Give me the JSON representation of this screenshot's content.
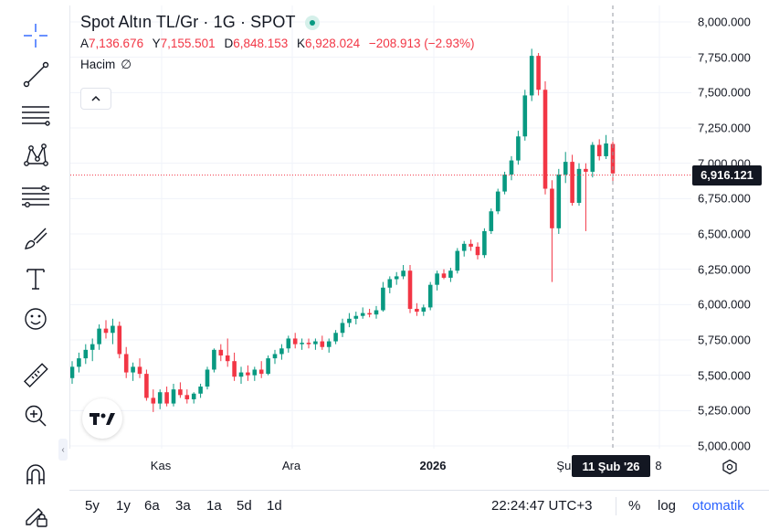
{
  "toolbar": {
    "tools": [
      {
        "name": "crosshair-icon"
      },
      {
        "name": "trend-line-icon"
      },
      {
        "name": "horizontal-lines-icon"
      },
      {
        "name": "pattern-icon"
      },
      {
        "name": "fib-icon"
      },
      {
        "name": "brush-icon"
      },
      {
        "name": "text-tool-icon"
      },
      {
        "name": "emoji-icon"
      },
      {
        "name": "ruler-icon"
      },
      {
        "name": "zoom-in-icon"
      },
      {
        "name": "magnet-icon"
      },
      {
        "name": "lock-drawing-icon"
      }
    ]
  },
  "legend": {
    "symbol": "Spot Altın TL/Gr · 1G · SPOT",
    "ohlc": [
      {
        "label": "A",
        "value": "7,136.676"
      },
      {
        "label": "Y",
        "value": "7,155.501"
      },
      {
        "label": "D",
        "value": "6,848.153"
      },
      {
        "label": "K",
        "value": "6,928.024"
      }
    ],
    "change": "−208.913 (−2.93%)",
    "volume_label": "Hacim",
    "volume_value": "∅",
    "status_color": "#089981"
  },
  "price_axis": {
    "last_price": "6,916.121",
    "ticks": [
      "8,000.000",
      "7,750.000",
      "7,500.000",
      "7,250.000",
      "7,000.000",
      "6,750.000",
      "6,500.000",
      "6,250.000",
      "6,000.000",
      "5,750.000",
      "5,500.000",
      "5,250.000",
      "5,000.000"
    ]
  },
  "time_axis": {
    "labels": [
      "Kas",
      "Ara",
      "2026",
      "Şub",
      "8"
    ],
    "crosshair_date": "11 Şub '26"
  },
  "bottom_bar": {
    "ranges": [
      "5y",
      "1y",
      "6a",
      "3a",
      "1a",
      "5d",
      "1d"
    ],
    "clock": "22:24:47 UTC+3",
    "percent": "%",
    "log": "log",
    "auto": "otomatik"
  },
  "colors": {
    "up": "#089981",
    "down": "#f23645",
    "grid": "#f0f3fa",
    "text": "#131722",
    "accent": "#2962ff"
  },
  "chart_data": {
    "type": "candlestick",
    "title": "Spot Altın TL/Gr · 1G · SPOT",
    "ylim": [
      5000,
      8000
    ],
    "yticks": [
      5000,
      5250,
      5500,
      5750,
      6000,
      6250,
      6500,
      6750,
      7000,
      7250,
      7500,
      7750,
      8000
    ],
    "last_price": 6916.121,
    "xtick_labels": [
      "Kas",
      "Ara",
      "2026",
      "Şub",
      "8"
    ],
    "candles": [
      {
        "o": 5480,
        "h": 5600,
        "l": 5440,
        "c": 5560
      },
      {
        "o": 5560,
        "h": 5660,
        "l": 5520,
        "c": 5620
      },
      {
        "o": 5620,
        "h": 5720,
        "l": 5580,
        "c": 5680
      },
      {
        "o": 5680,
        "h": 5760,
        "l": 5600,
        "c": 5720
      },
      {
        "o": 5720,
        "h": 5860,
        "l": 5680,
        "c": 5830
      },
      {
        "o": 5830,
        "h": 5890,
        "l": 5760,
        "c": 5800
      },
      {
        "o": 5800,
        "h": 5900,
        "l": 5720,
        "c": 5850
      },
      {
        "o": 5850,
        "h": 5880,
        "l": 5620,
        "c": 5650
      },
      {
        "o": 5650,
        "h": 5700,
        "l": 5480,
        "c": 5520
      },
      {
        "o": 5520,
        "h": 5590,
        "l": 5460,
        "c": 5560
      },
      {
        "o": 5560,
        "h": 5620,
        "l": 5480,
        "c": 5510
      },
      {
        "o": 5510,
        "h": 5540,
        "l": 5320,
        "c": 5340
      },
      {
        "o": 5340,
        "h": 5400,
        "l": 5240,
        "c": 5300
      },
      {
        "o": 5300,
        "h": 5400,
        "l": 5260,
        "c": 5380
      },
      {
        "o": 5380,
        "h": 5420,
        "l": 5280,
        "c": 5300
      },
      {
        "o": 5300,
        "h": 5440,
        "l": 5280,
        "c": 5400
      },
      {
        "o": 5400,
        "h": 5450,
        "l": 5340,
        "c": 5360
      },
      {
        "o": 5360,
        "h": 5400,
        "l": 5300,
        "c": 5330
      },
      {
        "o": 5330,
        "h": 5380,
        "l": 5300,
        "c": 5370
      },
      {
        "o": 5370,
        "h": 5440,
        "l": 5340,
        "c": 5420
      },
      {
        "o": 5420,
        "h": 5560,
        "l": 5400,
        "c": 5540
      },
      {
        "o": 5540,
        "h": 5690,
        "l": 5520,
        "c": 5680
      },
      {
        "o": 5680,
        "h": 5720,
        "l": 5600,
        "c": 5640
      },
      {
        "o": 5640,
        "h": 5760,
        "l": 5560,
        "c": 5600
      },
      {
        "o": 5600,
        "h": 5660,
        "l": 5460,
        "c": 5490
      },
      {
        "o": 5490,
        "h": 5560,
        "l": 5440,
        "c": 5520
      },
      {
        "o": 5520,
        "h": 5570,
        "l": 5460,
        "c": 5500
      },
      {
        "o": 5500,
        "h": 5560,
        "l": 5460,
        "c": 5540
      },
      {
        "o": 5540,
        "h": 5600,
        "l": 5480,
        "c": 5510
      },
      {
        "o": 5510,
        "h": 5640,
        "l": 5500,
        "c": 5620
      },
      {
        "o": 5620,
        "h": 5680,
        "l": 5580,
        "c": 5650
      },
      {
        "o": 5650,
        "h": 5720,
        "l": 5610,
        "c": 5690
      },
      {
        "o": 5690,
        "h": 5780,
        "l": 5660,
        "c": 5760
      },
      {
        "o": 5760,
        "h": 5800,
        "l": 5690,
        "c": 5720
      },
      {
        "o": 5720,
        "h": 5760,
        "l": 5680,
        "c": 5730
      },
      {
        "o": 5730,
        "h": 5760,
        "l": 5690,
        "c": 5720
      },
      {
        "o": 5720,
        "h": 5760,
        "l": 5680,
        "c": 5740
      },
      {
        "o": 5740,
        "h": 5780,
        "l": 5680,
        "c": 5700
      },
      {
        "o": 5700,
        "h": 5760,
        "l": 5660,
        "c": 5740
      },
      {
        "o": 5740,
        "h": 5820,
        "l": 5720,
        "c": 5800
      },
      {
        "o": 5800,
        "h": 5900,
        "l": 5770,
        "c": 5870
      },
      {
        "o": 5870,
        "h": 5940,
        "l": 5840,
        "c": 5900
      },
      {
        "o": 5900,
        "h": 5950,
        "l": 5860,
        "c": 5920
      },
      {
        "o": 5920,
        "h": 5980,
        "l": 5900,
        "c": 5940
      },
      {
        "o": 5940,
        "h": 5970,
        "l": 5910,
        "c": 5930
      },
      {
        "o": 5930,
        "h": 5990,
        "l": 5900,
        "c": 5960
      },
      {
        "o": 5960,
        "h": 6160,
        "l": 5950,
        "c": 6120
      },
      {
        "o": 6120,
        "h": 6200,
        "l": 6080,
        "c": 6180
      },
      {
        "o": 6180,
        "h": 6230,
        "l": 6140,
        "c": 6200
      },
      {
        "o": 6200,
        "h": 6280,
        "l": 6180,
        "c": 6240
      },
      {
        "o": 6240,
        "h": 6280,
        "l": 5940,
        "c": 5970
      },
      {
        "o": 5970,
        "h": 6010,
        "l": 5920,
        "c": 5950
      },
      {
        "o": 5950,
        "h": 6000,
        "l": 5920,
        "c": 5980
      },
      {
        "o": 5980,
        "h": 6160,
        "l": 5960,
        "c": 6140
      },
      {
        "o": 6140,
        "h": 6240,
        "l": 6100,
        "c": 6220
      },
      {
        "o": 6220,
        "h": 6250,
        "l": 6180,
        "c": 6190
      },
      {
        "o": 6190,
        "h": 6260,
        "l": 6160,
        "c": 6240
      },
      {
        "o": 6240,
        "h": 6400,
        "l": 6220,
        "c": 6380
      },
      {
        "o": 6380,
        "h": 6450,
        "l": 6340,
        "c": 6430
      },
      {
        "o": 6430,
        "h": 6460,
        "l": 6380,
        "c": 6410
      },
      {
        "o": 6410,
        "h": 6440,
        "l": 6320,
        "c": 6350
      },
      {
        "o": 6350,
        "h": 6540,
        "l": 6330,
        "c": 6520
      },
      {
        "o": 6520,
        "h": 6680,
        "l": 6500,
        "c": 6660
      },
      {
        "o": 6660,
        "h": 6820,
        "l": 6640,
        "c": 6800
      },
      {
        "o": 6800,
        "h": 6940,
        "l": 6780,
        "c": 6920
      },
      {
        "o": 6920,
        "h": 7050,
        "l": 6880,
        "c": 7020
      },
      {
        "o": 7020,
        "h": 7230,
        "l": 6990,
        "c": 7190
      },
      {
        "o": 7190,
        "h": 7520,
        "l": 7160,
        "c": 7480
      },
      {
        "o": 7480,
        "h": 7810,
        "l": 7440,
        "c": 7760
      },
      {
        "o": 7760,
        "h": 7780,
        "l": 7480,
        "c": 7520
      },
      {
        "o": 7520,
        "h": 7580,
        "l": 6780,
        "c": 6820
      },
      {
        "o": 6820,
        "h": 6880,
        "l": 6160,
        "c": 6540
      },
      {
        "o": 6540,
        "h": 6960,
        "l": 6500,
        "c": 6920
      },
      {
        "o": 6920,
        "h": 7080,
        "l": 6860,
        "c": 7010
      },
      {
        "o": 7010,
        "h": 7060,
        "l": 6700,
        "c": 6720
      },
      {
        "o": 6720,
        "h": 7000,
        "l": 6700,
        "c": 6960
      },
      {
        "o": 6960,
        "h": 7000,
        "l": 6520,
        "c": 6940
      },
      {
        "o": 6940,
        "h": 7150,
        "l": 6900,
        "c": 7130
      },
      {
        "o": 7130,
        "h": 7170,
        "l": 7020,
        "c": 7050
      },
      {
        "o": 7050,
        "h": 7200,
        "l": 7030,
        "c": 7140
      },
      {
        "o": 7136.676,
        "h": 7155.501,
        "l": 6848.153,
        "c": 6928.024
      }
    ]
  }
}
